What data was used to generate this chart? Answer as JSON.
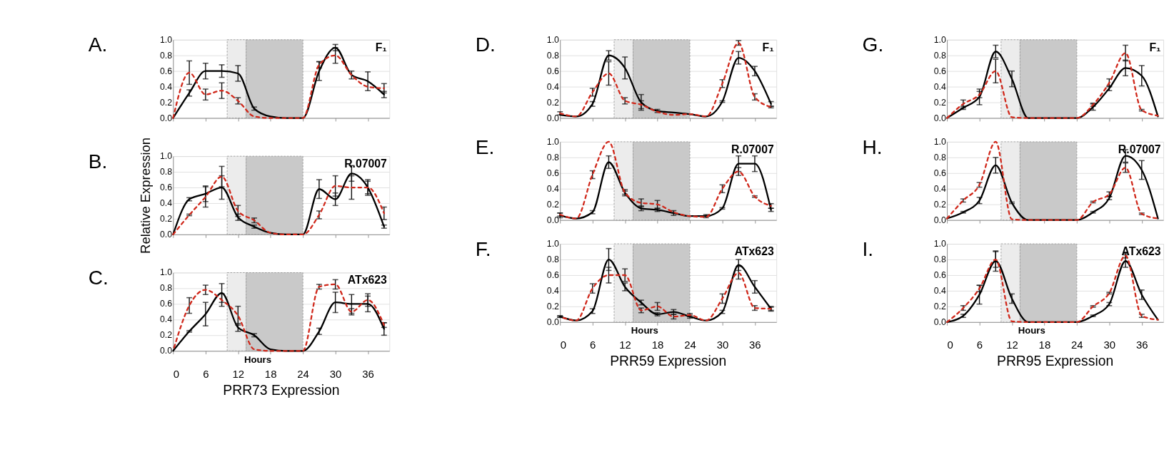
{
  "chart_data": [
    {
      "type": "line",
      "tick_labels": "y",
      "grid": "y",
      "marker": "none",
      "x": [
        0,
        3,
        6,
        9,
        12,
        15,
        18,
        21,
        24,
        27,
        30,
        33,
        36,
        39
      ],
      "xlim": [
        0,
        40
      ],
      "xticks": [
        0,
        6,
        12,
        18,
        24,
        30,
        36
      ],
      "ylim": [
        0,
        1
      ],
      "yticks": [
        {
          "value": 0,
          "label": "0.0"
        },
        {
          "value": 0.2,
          "label": "0.2"
        },
        {
          "value": 0.4,
          "label": "0.4"
        },
        {
          "value": 0.6,
          "label": "0.6"
        },
        {
          "value": 0.8,
          "label": "0.8"
        },
        {
          "value": 1,
          "label": "1.0"
        }
      ],
      "annotations": [
        "A.",
        "F₁"
      ],
      "bands": [
        {
          "axis": "x",
          "from": 10,
          "to": 13.5,
          "color": "#ececec"
        },
        {
          "axis": "x",
          "from": 13.5,
          "to": 24,
          "color": "#c9c9c9"
        }
      ],
      "series": [
        {
          "color": "#000000",
          "line_style": "solid",
          "values": [
            0,
            0.32,
            0.6,
            0.6,
            0.57,
            0.12,
            0.02,
            0,
            0,
            0.6,
            0.9,
            0.55,
            0.47,
            0.3
          ],
          "errors": [
            null,
            0.04,
            0.1,
            0.08,
            0.1,
            0.02,
            null,
            null,
            null,
            0.12,
            0.04,
            0.05,
            0.12,
            0.04
          ]
        },
        {
          "color": "#d0281b",
          "line_style": "dashed",
          "values": [
            0,
            0.58,
            0.3,
            0.35,
            0.22,
            0.02,
            0,
            0,
            0,
            0.68,
            0.8,
            0.55,
            0.4,
            0.38
          ],
          "errors": [
            null,
            0.15,
            0.07,
            0.1,
            0.04,
            null,
            null,
            null,
            null,
            0.04,
            0.1,
            null,
            null,
            0.06
          ]
        }
      ]
    },
    {
      "type": "line",
      "tick_labels": "y",
      "grid": "y",
      "marker": "none",
      "ylabel": "Relative Expression",
      "x": [
        0,
        3,
        6,
        9,
        12,
        15,
        18,
        21,
        24,
        27,
        30,
        33,
        36,
        39
      ],
      "xlim": [
        0,
        40
      ],
      "xticks": [
        0,
        6,
        12,
        18,
        24,
        30,
        36
      ],
      "ylim": [
        0,
        1
      ],
      "yticks": [
        {
          "value": 0,
          "label": "0.0"
        },
        {
          "value": 0.2,
          "label": "0.2"
        },
        {
          "value": 0.4,
          "label": "0.4"
        },
        {
          "value": 0.6,
          "label": "0.6"
        },
        {
          "value": 0.8,
          "label": "0.8"
        },
        {
          "value": 1,
          "label": "1.0"
        }
      ],
      "annotations": [
        "B.",
        "R.07007"
      ],
      "bands": [
        {
          "axis": "x",
          "from": 10,
          "to": 13.5,
          "color": "#ececec"
        },
        {
          "axis": "x",
          "from": 13.5,
          "to": 24,
          "color": "#c9c9c9"
        }
      ],
      "series": [
        {
          "color": "#000000",
          "line_style": "solid",
          "values": [
            0,
            0.45,
            0.52,
            0.6,
            0.22,
            0.1,
            0.02,
            0,
            0,
            0.58,
            0.45,
            0.78,
            0.6,
            0.1
          ],
          "errors": [
            null,
            0.02,
            0.1,
            0.15,
            0.04,
            0.02,
            null,
            null,
            null,
            0.12,
            0.08,
            0.1,
            0.1,
            0.02
          ]
        },
        {
          "color": "#d0281b",
          "line_style": "dashed",
          "values": [
            0,
            0.25,
            0.48,
            0.74,
            0.3,
            0.18,
            0.02,
            0,
            0,
            0.25,
            0.62,
            0.6,
            0.6,
            0.27
          ],
          "errors": [
            null,
            0.01,
            0.13,
            0.13,
            0.07,
            0.03,
            null,
            null,
            null,
            0.05,
            0.13,
            0.15,
            0.08,
            0.08
          ]
        }
      ]
    },
    {
      "type": "line",
      "grid": "y",
      "marker": "none",
      "title": "PRR73 Expression",
      "xlabel": "Hours",
      "x": [
        0,
        3,
        6,
        9,
        12,
        15,
        18,
        21,
        24,
        27,
        30,
        33,
        36,
        39
      ],
      "xlim": [
        0,
        40
      ],
      "xticks": [
        0,
        6,
        12,
        18,
        24,
        30,
        36
      ],
      "ylim": [
        0,
        1
      ],
      "yticks": [
        {
          "value": 0,
          "label": "0.0"
        },
        {
          "value": 0.2,
          "label": "0.2"
        },
        {
          "value": 0.4,
          "label": "0.4"
        },
        {
          "value": 0.6,
          "label": "0.6"
        },
        {
          "value": 0.8,
          "label": "0.8"
        },
        {
          "value": 1,
          "label": "1.0"
        }
      ],
      "annotations": [
        "C.",
        "ATx623"
      ],
      "bands": [
        {
          "axis": "x",
          "from": 10,
          "to": 13.5,
          "color": "#ececec"
        },
        {
          "axis": "x",
          "from": 13.5,
          "to": 24,
          "color": "#c9c9c9"
        }
      ],
      "series": [
        {
          "color": "#000000",
          "line_style": "solid",
          "values": [
            0,
            0.25,
            0.47,
            0.74,
            0.3,
            0.2,
            0.02,
            0,
            0,
            0.25,
            0.62,
            0.6,
            0.6,
            0.28
          ],
          "errors": [
            null,
            0.01,
            0.15,
            0.12,
            0.05,
            0.02,
            null,
            null,
            null,
            0.04,
            0.13,
            0.12,
            0.1,
            0.08
          ]
        },
        {
          "color": "#d0281b",
          "line_style": "dashed",
          "values": [
            0,
            0.58,
            0.78,
            0.65,
            0.45,
            0.02,
            0,
            0,
            0,
            0.82,
            0.85,
            0.5,
            0.65,
            0.33
          ],
          "errors": [
            null,
            0.1,
            0.06,
            0.08,
            0.12,
            null,
            null,
            null,
            null,
            0.03,
            0.06,
            0.04,
            0.08,
            0.03
          ]
        }
      ]
    },
    {
      "type": "line",
      "tick_labels": "y",
      "grid": "y",
      "marker": "none",
      "x": [
        0,
        3,
        6,
        9,
        12,
        15,
        18,
        21,
        24,
        27,
        30,
        33,
        36,
        39
      ],
      "xlim": [
        0,
        40
      ],
      "xticks": [
        0,
        6,
        12,
        18,
        24,
        30,
        36
      ],
      "ylim": [
        0,
        1
      ],
      "yticks": [
        {
          "value": 0,
          "label": "0.0"
        },
        {
          "value": 0.2,
          "label": "0.2"
        },
        {
          "value": 0.4,
          "label": "0.4"
        },
        {
          "value": 0.6,
          "label": "0.6"
        },
        {
          "value": 0.8,
          "label": "0.8"
        },
        {
          "value": 1,
          "label": "1.0"
        }
      ],
      "annotations": [
        "D.",
        "F₁"
      ],
      "bands": [
        {
          "axis": "x",
          "from": 10,
          "to": 13.5,
          "color": "#ececec"
        },
        {
          "axis": "x",
          "from": 13.5,
          "to": 24,
          "color": "#c9c9c9"
        }
      ],
      "series": [
        {
          "color": "#000000",
          "line_style": "solid",
          "values": [
            0.04,
            0.02,
            0.18,
            0.8,
            0.64,
            0.2,
            0.09,
            0.07,
            0.05,
            0.02,
            0.21,
            0.77,
            0.6,
            0.18
          ],
          "errors": [
            null,
            null,
            0.03,
            0.06,
            0.14,
            0.1,
            0.02,
            null,
            null,
            null,
            0.01,
            0.08,
            0.06,
            0.03
          ]
        },
        {
          "color": "#d0281b",
          "line_style": "dashed",
          "values": [
            0.06,
            0.02,
            0.33,
            0.57,
            0.22,
            0.17,
            0.08,
            0.04,
            0.05,
            0.02,
            0.44,
            0.96,
            0.27,
            0.14
          ],
          "errors": [
            0.02,
            null,
            0.05,
            0.15,
            0.04,
            0.05,
            null,
            null,
            null,
            null,
            0.05,
            0.03,
            0.04,
            0.01
          ]
        }
      ]
    },
    {
      "type": "line",
      "tick_labels": "y",
      "grid": "y",
      "marker": "none",
      "x": [
        0,
        3,
        6,
        9,
        12,
        15,
        18,
        21,
        24,
        27,
        30,
        33,
        36,
        39
      ],
      "xlim": [
        0,
        40
      ],
      "xticks": [
        0,
        6,
        12,
        18,
        24,
        30,
        36
      ],
      "ylim": [
        0,
        1
      ],
      "yticks": [
        {
          "value": 0,
          "label": "0.0"
        },
        {
          "value": 0.2,
          "label": "0.2"
        },
        {
          "value": 0.4,
          "label": "0.4"
        },
        {
          "value": 0.6,
          "label": "0.6"
        },
        {
          "value": 0.8,
          "label": "0.8"
        },
        {
          "value": 1,
          "label": "1.0"
        }
      ],
      "annotations": [
        "E.",
        "R.07007"
      ],
      "bands": [
        {
          "axis": "x",
          "from": 10,
          "to": 13.5,
          "color": "#ececec"
        },
        {
          "axis": "x",
          "from": 13.5,
          "to": 24,
          "color": "#c9c9c9"
        }
      ],
      "series": [
        {
          "color": "#000000",
          "line_style": "solid",
          "values": [
            0.06,
            0.02,
            0.1,
            0.74,
            0.35,
            0.15,
            0.13,
            0.09,
            0.05,
            0.05,
            0.15,
            0.72,
            0.72,
            0.13
          ],
          "errors": [
            0.03,
            null,
            0.02,
            0.08,
            0.04,
            0.03,
            0.02,
            0.03,
            null,
            0.02,
            0.01,
            0.1,
            0.1,
            0.02
          ]
        },
        {
          "color": "#d0281b",
          "line_style": "dashed",
          "values": [
            0.07,
            0.02,
            0.58,
            1.0,
            0.35,
            0.22,
            0.2,
            0.1,
            0.05,
            0.04,
            0.4,
            0.62,
            0.3,
            0.18
          ],
          "errors": [
            0.02,
            null,
            0.05,
            null,
            0.02,
            0.05,
            0.05,
            null,
            null,
            null,
            0.05,
            0.05,
            0.01,
            0.03
          ]
        }
      ]
    },
    {
      "type": "line",
      "grid": "y",
      "marker": "none",
      "title": "PRR59 Expression",
      "xlabel": "Hours",
      "x": [
        0,
        3,
        6,
        9,
        12,
        15,
        18,
        21,
        24,
        27,
        30,
        33,
        36,
        39
      ],
      "xlim": [
        0,
        40
      ],
      "xticks": [
        0,
        6,
        12,
        18,
        24,
        30,
        36
      ],
      "ylim": [
        0,
        1
      ],
      "yticks": [
        {
          "value": 0,
          "label": "0.0"
        },
        {
          "value": 0.2,
          "label": "0.2"
        },
        {
          "value": 0.4,
          "label": "0.4"
        },
        {
          "value": 0.6,
          "label": "0.6"
        },
        {
          "value": 0.8,
          "label": "0.8"
        },
        {
          "value": 1,
          "label": "1.0"
        }
      ],
      "annotations": [
        "F.",
        "ATx623"
      ],
      "bands": [
        {
          "axis": "x",
          "from": 10,
          "to": 13.5,
          "color": "#ececec"
        },
        {
          "axis": "x",
          "from": 13.5,
          "to": 24,
          "color": "#c9c9c9"
        }
      ],
      "series": [
        {
          "color": "#000000",
          "line_style": "solid",
          "values": [
            0.07,
            0.02,
            0.14,
            0.8,
            0.45,
            0.25,
            0.1,
            0.13,
            0.07,
            0.02,
            0.13,
            0.73,
            0.45,
            0.17
          ],
          "errors": [
            0.01,
            null,
            0.03,
            0.14,
            0.05,
            0.03,
            0.02,
            0.03,
            0.02,
            null,
            0.02,
            0.07,
            0.08,
            0.03
          ]
        },
        {
          "color": "#d0281b",
          "line_style": "dashed",
          "values": [
            0.07,
            0.02,
            0.43,
            0.6,
            0.6,
            0.15,
            0.2,
            0.07,
            0.09,
            0.02,
            0.3,
            0.63,
            0.18,
            0.17
          ],
          "errors": [
            0.01,
            null,
            0.06,
            0.1,
            0.08,
            0.03,
            0.05,
            0.03,
            0.02,
            null,
            0.06,
            0.08,
            0.03,
            0.02
          ]
        }
      ]
    },
    {
      "type": "line",
      "tick_labels": "y",
      "grid": "y",
      "marker": "none",
      "x": [
        0,
        3,
        6,
        9,
        12,
        15,
        18,
        21,
        24,
        27,
        30,
        33,
        36,
        39
      ],
      "xlim": [
        0,
        40
      ],
      "xticks": [
        0,
        6,
        12,
        18,
        24,
        30,
        36
      ],
      "ylim": [
        0,
        1
      ],
      "yticks": [
        {
          "value": 0,
          "label": "0.0"
        },
        {
          "value": 0.2,
          "label": "0.2"
        },
        {
          "value": 0.4,
          "label": "0.4"
        },
        {
          "value": 0.6,
          "label": "0.6"
        },
        {
          "value": 0.8,
          "label": "0.8"
        },
        {
          "value": 1,
          "label": "1.0"
        }
      ],
      "annotations": [
        "G.",
        "F₁"
      ],
      "bands": [
        {
          "axis": "x",
          "from": 10,
          "to": 13.5,
          "color": "#ececec"
        },
        {
          "axis": "x",
          "from": 13.5,
          "to": 24,
          "color": "#c9c9c9"
        }
      ],
      "series": [
        {
          "color": "#000000",
          "line_style": "solid",
          "values": [
            0,
            0.13,
            0.27,
            0.85,
            0.5,
            0,
            0,
            0,
            0,
            0.14,
            0.38,
            0.64,
            0.54,
            0.02
          ],
          "errors": [
            null,
            0.02,
            0.1,
            0.08,
            0.1,
            null,
            null,
            null,
            null,
            0.04,
            0.03,
            0.1,
            0.13,
            null
          ]
        },
        {
          "color": "#d0281b",
          "line_style": "dashed",
          "values": [
            0,
            0.18,
            0.3,
            0.6,
            0.01,
            0,
            0,
            0,
            0,
            0.17,
            0.45,
            0.83,
            0.1,
            0.03
          ],
          "errors": [
            null,
            0.05,
            0.04,
            0.15,
            null,
            null,
            null,
            null,
            null,
            0.02,
            0.05,
            0.1,
            0.01,
            null
          ]
        }
      ]
    },
    {
      "type": "line",
      "tick_labels": "y",
      "grid": "y",
      "marker": "none",
      "x": [
        0,
        3,
        6,
        9,
        12,
        15,
        18,
        21,
        24,
        27,
        30,
        33,
        36,
        39
      ],
      "xlim": [
        0,
        40
      ],
      "xticks": [
        0,
        6,
        12,
        18,
        24,
        30,
        36
      ],
      "ylim": [
        0,
        1
      ],
      "yticks": [
        {
          "value": 0,
          "label": "0.0"
        },
        {
          "value": 0.2,
          "label": "0.2"
        },
        {
          "value": 0.4,
          "label": "0.4"
        },
        {
          "value": 0.6,
          "label": "0.6"
        },
        {
          "value": 0.8,
          "label": "0.8"
        },
        {
          "value": 1,
          "label": "1.0"
        }
      ],
      "annotations": [
        "H.",
        "R.07007"
      ],
      "bands": [
        {
          "axis": "x",
          "from": 10,
          "to": 13.5,
          "color": "#ececec"
        },
        {
          "axis": "x",
          "from": 13.5,
          "to": 24,
          "color": "#c9c9c9"
        }
      ],
      "series": [
        {
          "color": "#000000",
          "line_style": "solid",
          "values": [
            0.02,
            0.1,
            0.25,
            0.7,
            0.22,
            0,
            0,
            0,
            0,
            0.1,
            0.28,
            0.82,
            0.64,
            0.02
          ],
          "errors": [
            null,
            0.01,
            0.04,
            0.1,
            0.01,
            null,
            null,
            null,
            null,
            0.01,
            0.02,
            0.08,
            0.12,
            null
          ]
        },
        {
          "color": "#d0281b",
          "line_style": "dashed",
          "values": [
            0.02,
            0.25,
            0.45,
            1.0,
            0.01,
            0,
            0,
            0,
            0,
            0.23,
            0.33,
            0.67,
            0.08,
            0.02
          ],
          "errors": [
            null,
            0.02,
            0.03,
            null,
            null,
            null,
            null,
            null,
            null,
            0.01,
            0.03,
            0.06,
            0.01,
            null
          ]
        }
      ]
    },
    {
      "type": "line",
      "grid": "y",
      "marker": "none",
      "title": "PRR95 Expression",
      "xlabel": "Hours",
      "x": [
        0,
        3,
        6,
        9,
        12,
        15,
        18,
        21,
        24,
        27,
        30,
        33,
        36,
        39
      ],
      "xlim": [
        0,
        40
      ],
      "xticks": [
        0,
        6,
        12,
        18,
        24,
        30,
        36
      ],
      "ylim": [
        0,
        1
      ],
      "yticks": [
        {
          "value": 0,
          "label": "0.0"
        },
        {
          "value": 0.2,
          "label": "0.2"
        },
        {
          "value": 0.4,
          "label": "0.4"
        },
        {
          "value": 0.6,
          "label": "0.6"
        },
        {
          "value": 0.8,
          "label": "0.8"
        },
        {
          "value": 1,
          "label": "1.0"
        }
      ],
      "annotations": [
        "I.",
        "ATx623"
      ],
      "bands": [
        {
          "axis": "x",
          "from": 10,
          "to": 13.5,
          "color": "#ececec"
        },
        {
          "axis": "x",
          "from": 13.5,
          "to": 24,
          "color": "#c9c9c9"
        }
      ],
      "series": [
        {
          "color": "#000000",
          "line_style": "solid",
          "values": [
            0,
            0.08,
            0.35,
            0.78,
            0.3,
            0,
            0,
            0,
            0,
            0.08,
            0.23,
            0.78,
            0.35,
            0.03
          ],
          "errors": [
            null,
            0.02,
            0.12,
            0.13,
            0.06,
            null,
            null,
            null,
            null,
            0.01,
            0.02,
            0.08,
            0.06,
            null
          ]
        },
        {
          "color": "#d0281b",
          "line_style": "dashed",
          "values": [
            0,
            0.18,
            0.43,
            0.8,
            0.01,
            0,
            0,
            0,
            0,
            0.2,
            0.37,
            0.85,
            0.08,
            0.03
          ],
          "errors": [
            null,
            0.03,
            0.04,
            0.1,
            null,
            null,
            null,
            null,
            null,
            0.01,
            0.01,
            0.03,
            0.02,
            null
          ]
        }
      ]
    }
  ]
}
